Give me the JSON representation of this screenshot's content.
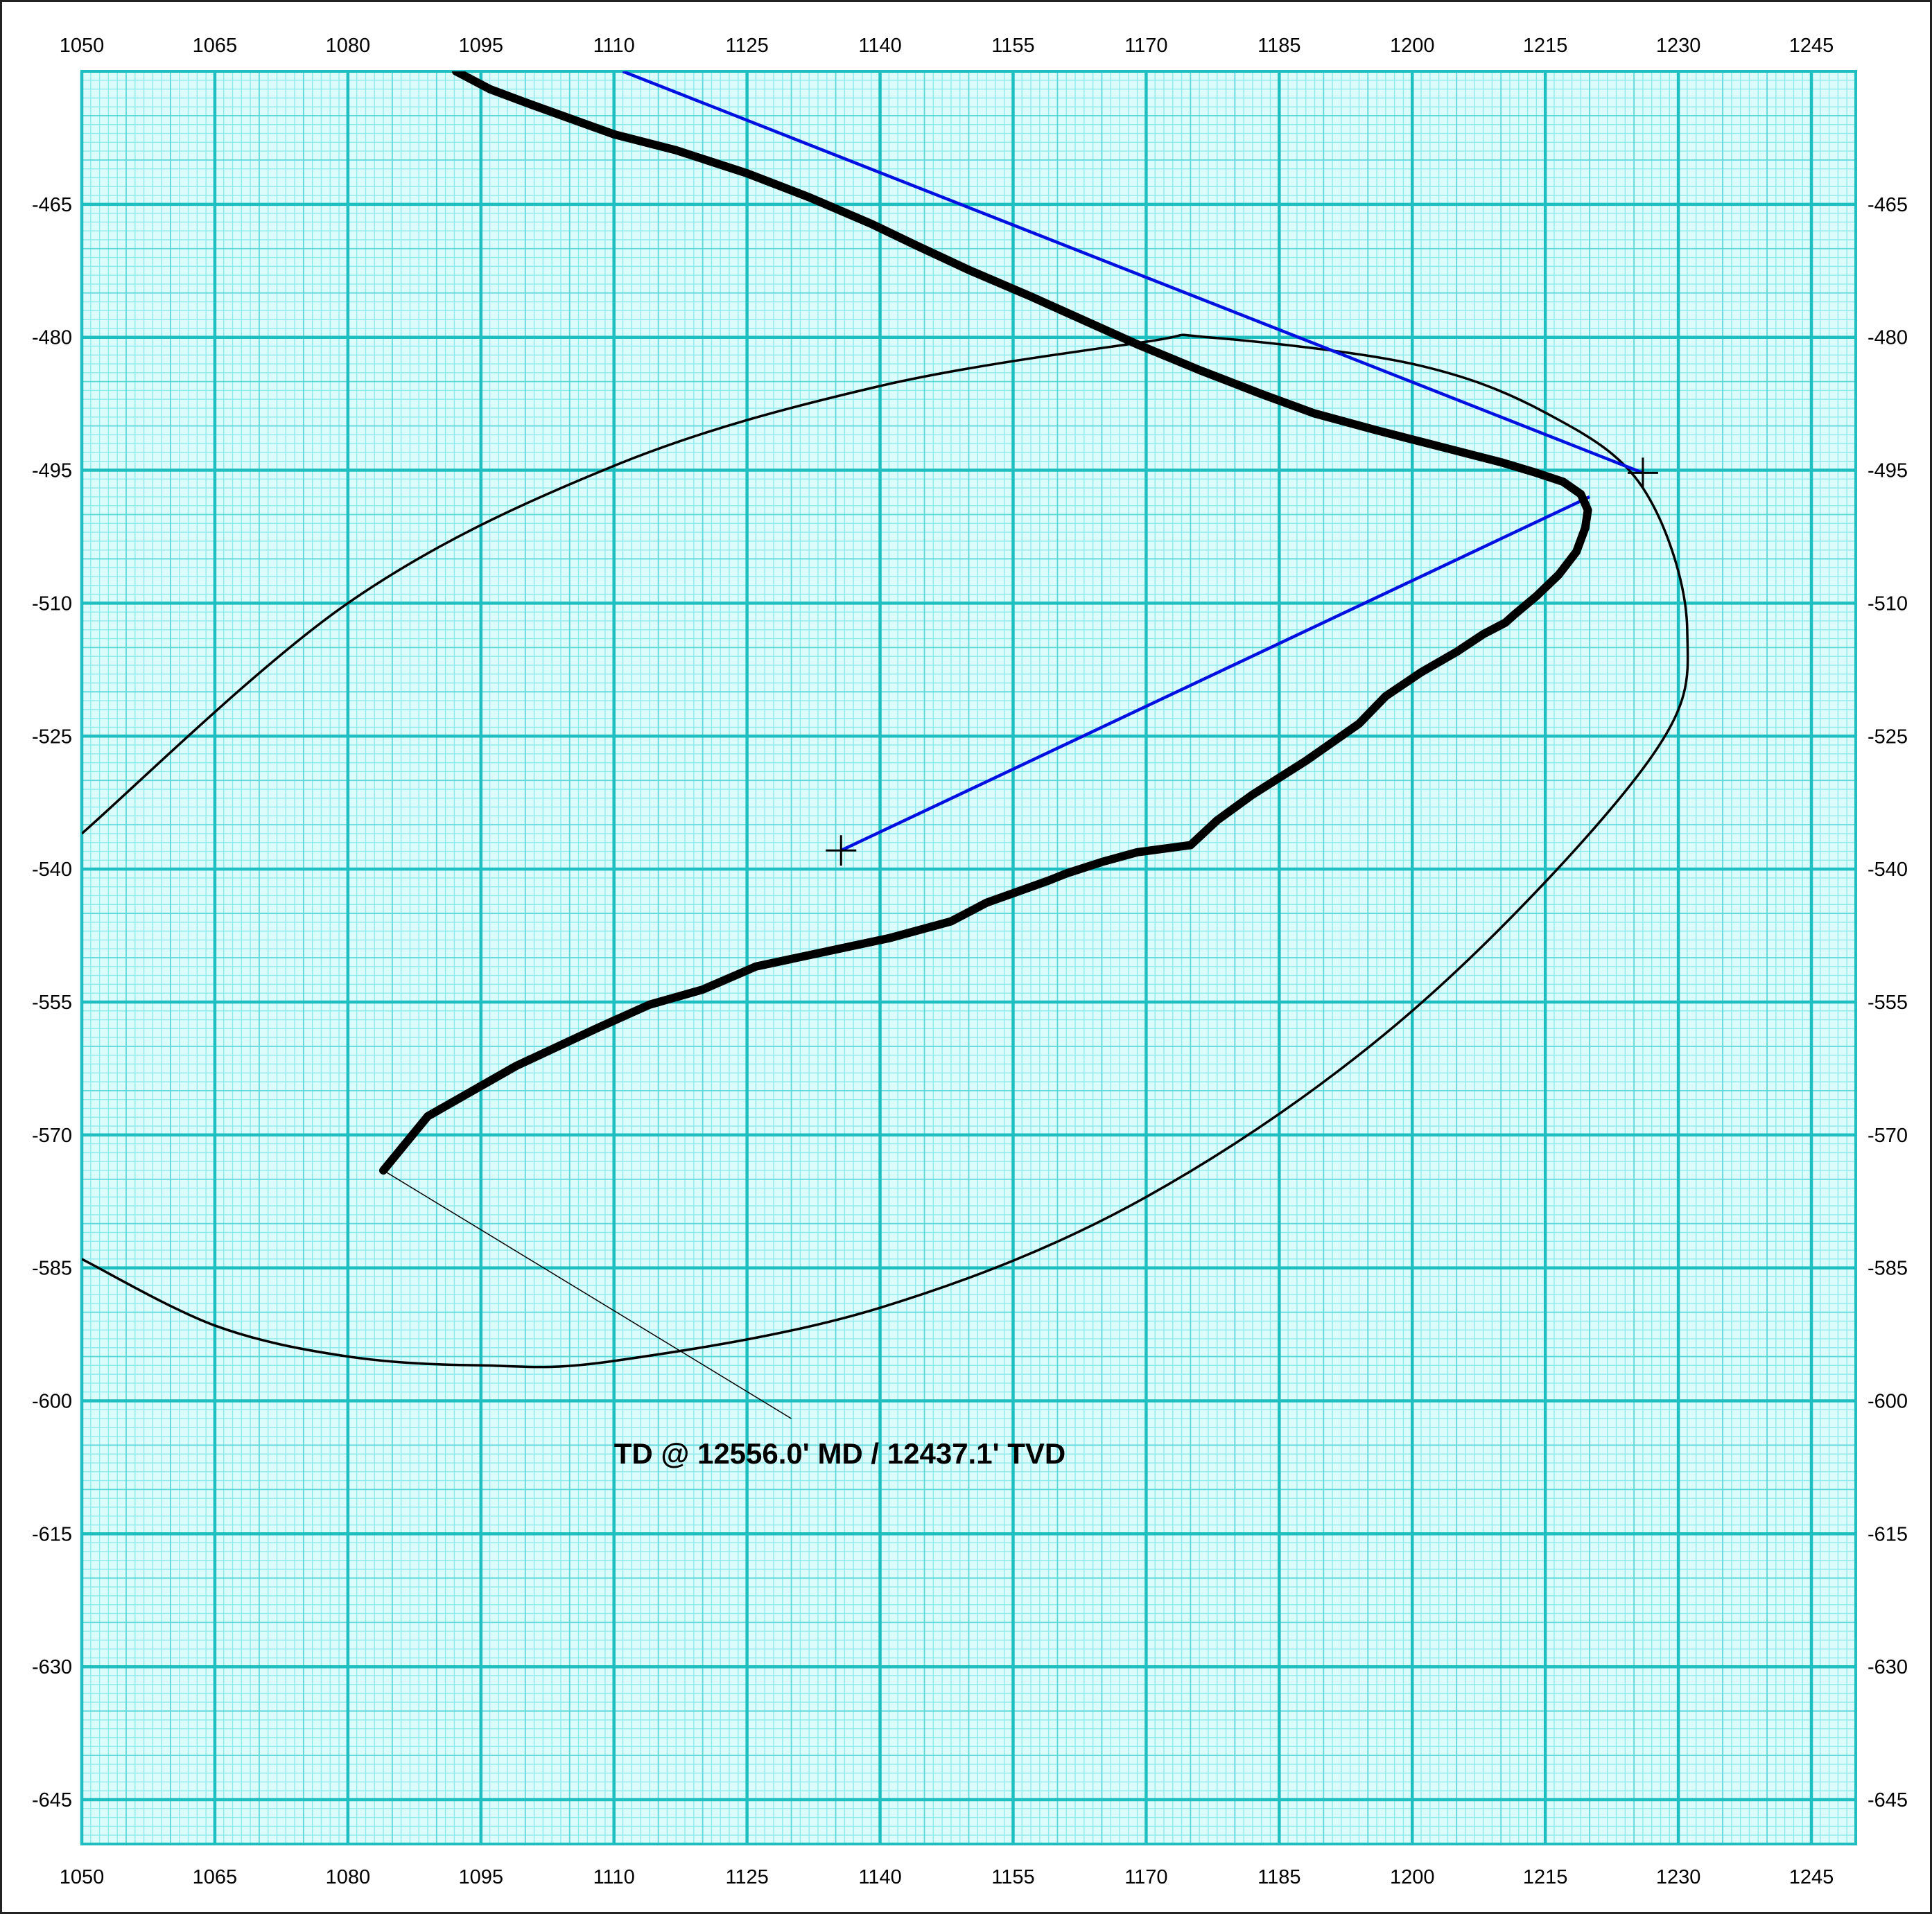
{
  "chart_data": {
    "type": "line",
    "title": "",
    "xlabel": "",
    "ylabel": "",
    "xlim": [
      1050,
      1250
    ],
    "ylim": [
      -650,
      -450
    ],
    "x_ticks": [
      1050,
      1065,
      1080,
      1095,
      1110,
      1125,
      1140,
      1155,
      1170,
      1185,
      1200,
      1215,
      1230,
      1245
    ],
    "x_tick_labels": [
      "1050",
      "1065",
      "1080",
      "1095",
      "1110",
      "1125",
      "1140",
      "1155",
      "1170",
      "1185",
      "1200",
      "1215",
      "1230",
      "1245"
    ],
    "y_ticks": [
      -465,
      -480,
      -495,
      -510,
      -525,
      -540,
      -555,
      -570,
      -585,
      -600,
      -615,
      -630,
      -645
    ],
    "y_tick_labels": [
      "-465",
      "-480",
      "-495",
      "-510",
      "-525",
      "-540",
      "-555",
      "-570",
      "-585",
      "-600",
      "-615",
      "-630",
      "-645"
    ],
    "grid": true,
    "legend": "none",
    "colors": {
      "grid_major": "#1fbfc1",
      "grid_minor": "#8feaec",
      "plot_background": "#dcfbfb",
      "wellpath": "#000000",
      "ellipse": "#000000",
      "blue_lines": "#0010e0"
    },
    "series": [
      {
        "type": "line",
        "x": [
          1092.2,
          1096,
          1100,
          1105,
          1110,
          1117,
          1125,
          1132,
          1139,
          1144,
          1150,
          1157,
          1163,
          1169,
          1176,
          1183,
          1189,
          1196,
          1203,
          1210,
          1214,
          1217,
          1219,
          1219.8,
          1219.5,
          1218.5,
          1216.5,
          1214,
          1211.5,
          1210.5,
          1208,
          1205,
          1201,
          1197,
          1194,
          1188,
          1182,
          1178,
          1175,
          1169,
          1165,
          1161,
          1159,
          1152,
          1148,
          1141,
          1133,
          1126,
          1120,
          1114,
          1108,
          1099,
          1089,
          1084
        ],
        "y": [
          -450,
          -452,
          -453.5,
          -455.3,
          -457.1,
          -458.9,
          -461.5,
          -464.2,
          -467.2,
          -469.6,
          -472.4,
          -475.4,
          -478.1,
          -480.8,
          -483.7,
          -486.4,
          -488.6,
          -490.5,
          -492.3,
          -494.1,
          -495.3,
          -496.3,
          -497.7,
          -499.5,
          -501.5,
          -504.2,
          -506.8,
          -509.2,
          -511.3,
          -512.2,
          -513.5,
          -515.5,
          -517.8,
          -520.5,
          -523.6,
          -527.8,
          -531.6,
          -534.5,
          -537.3,
          -538.1,
          -539.2,
          -540.5,
          -541.3,
          -543.8,
          -545.9,
          -547.8,
          -549.5,
          -551,
          -553.6,
          -555.3,
          -558,
          -562.2,
          -567.9,
          -574
        ]
      },
      {
        "type": "line",
        "x": [
          1111,
          1226
        ],
        "y": [
          -450,
          -495.3
        ]
      },
      {
        "type": "line",
        "x": [
          1220,
          1135.6
        ],
        "y": [
          -498,
          -537.9
        ]
      },
      {
        "type": "ellipse",
        "x": [
          1050,
          1080,
          1110,
          1140,
          1170,
          1177,
          1200,
          1215,
          1226,
          1231,
          1226.5,
          1200,
          1170,
          1140,
          1110,
          1095,
          1080,
          1065,
          1050
        ],
        "y": [
          -536,
          -510,
          -494.5,
          -485.5,
          -480.5,
          -480,
          -483,
          -488.5,
          -497,
          -513,
          -528,
          -556,
          -577,
          -589.5,
          -595.5,
          -596,
          -595,
          -591.5,
          -584
        ]
      }
    ],
    "markers": [
      {
        "x": 1226,
        "y": -495.3
      },
      {
        "x": 1135.6,
        "y": -537.9
      }
    ],
    "annotations": [
      {
        "text": "TD @ 12556.0' MD / 12437.1' TVD",
        "x": 1110,
        "y": -606,
        "anchor_x": 1084,
        "anchor_y": -574,
        "line_end_x": 1130,
        "line_end_y": -602
      }
    ]
  }
}
